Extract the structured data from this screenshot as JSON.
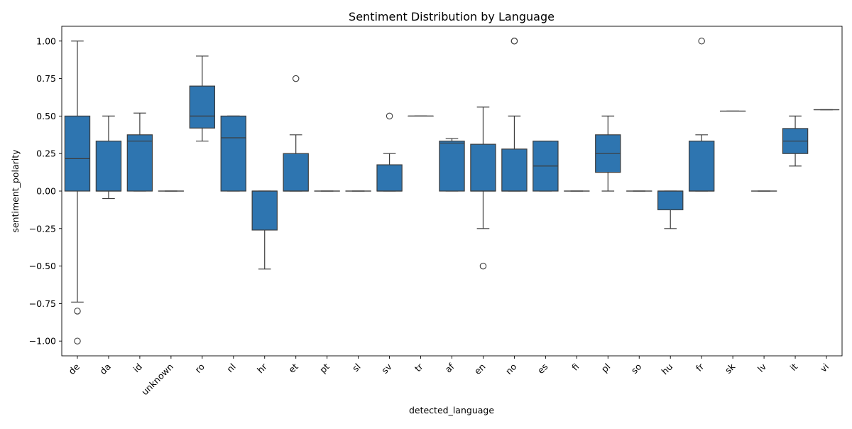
{
  "chart_data": {
    "type": "box",
    "title": "Sentiment Distribution by Language",
    "xlabel": "detected_language",
    "ylabel": "sentiment_polarity",
    "ylim": [
      -1.09,
      1.1
    ],
    "yticks": [
      -1.0,
      -0.75,
      -0.5,
      -0.25,
      0.0,
      0.25,
      0.5,
      0.75,
      1.0
    ],
    "ytick_labels": [
      "−1.00",
      "−0.75",
      "−0.50",
      "−0.25",
      "0.00",
      "0.25",
      "0.50",
      "0.75",
      "1.00"
    ],
    "grid": false,
    "box_color": "#2e75b0",
    "line_color": "#3d3d3d",
    "categories": [
      "de",
      "da",
      "id",
      "unknown",
      "ro",
      "nl",
      "hr",
      "et",
      "pt",
      "sl",
      "sv",
      "tr",
      "af",
      "en",
      "no",
      "es",
      "fi",
      "pl",
      "so",
      "hu",
      "fr",
      "sk",
      "lv",
      "it",
      "vi"
    ],
    "boxes": [
      {
        "q1": 0.0,
        "median": 0.216,
        "q3": 0.5,
        "whislo": -0.74,
        "whishi": 1.0,
        "fliers": [
          -0.8,
          -1.0
        ]
      },
      {
        "q1": 0.0,
        "median": 0.0,
        "q3": 0.333,
        "whislo": -0.05,
        "whishi": 0.5,
        "fliers": []
      },
      {
        "q1": 0.0,
        "median": 0.333,
        "q3": 0.375,
        "whislo": 0.0,
        "whishi": 0.52,
        "fliers": []
      },
      {
        "q1": 0.0,
        "median": 0.0,
        "q3": 0.0,
        "whislo": 0.0,
        "whishi": 0.0,
        "fliers": []
      },
      {
        "q1": 0.42,
        "median": 0.5,
        "q3": 0.7,
        "whislo": 0.333,
        "whishi": 0.9,
        "fliers": []
      },
      {
        "q1": 0.0,
        "median": 0.355,
        "q3": 0.5,
        "whislo": 0.0,
        "whishi": 0.5,
        "fliers": []
      },
      {
        "q1": -0.26,
        "median": 0.0,
        "q3": 0.0,
        "whislo": -0.52,
        "whishi": 0.0,
        "fliers": []
      },
      {
        "q1": 0.0,
        "median": 0.0,
        "q3": 0.25,
        "whislo": 0.0,
        "whishi": 0.375,
        "fliers": [
          0.75
        ]
      },
      {
        "q1": 0.0,
        "median": 0.0,
        "q3": 0.0,
        "whislo": 0.0,
        "whishi": 0.0,
        "fliers": []
      },
      {
        "q1": 0.0,
        "median": 0.0,
        "q3": 0.0,
        "whislo": 0.0,
        "whishi": 0.0,
        "fliers": []
      },
      {
        "q1": 0.0,
        "median": 0.0,
        "q3": 0.175,
        "whislo": 0.0,
        "whishi": 0.25,
        "fliers": [
          0.5
        ]
      },
      {
        "q1": 0.5,
        "median": 0.5,
        "q3": 0.5,
        "whislo": 0.5,
        "whishi": 0.5,
        "fliers": []
      },
      {
        "q1": 0.0,
        "median": 0.32,
        "q3": 0.333,
        "whislo": 0.0,
        "whishi": 0.35,
        "fliers": []
      },
      {
        "q1": 0.0,
        "median": 0.0,
        "q3": 0.312,
        "whislo": -0.25,
        "whishi": 0.56,
        "fliers": [
          -0.5
        ]
      },
      {
        "q1": 0.0,
        "median": 0.0,
        "q3": 0.28,
        "whislo": 0.0,
        "whishi": 0.5,
        "fliers": [
          1.0,
          1.0
        ]
      },
      {
        "q1": 0.0,
        "median": 0.167,
        "q3": 0.333,
        "whislo": 0.0,
        "whishi": 0.333,
        "fliers": []
      },
      {
        "q1": 0.0,
        "median": 0.0,
        "q3": 0.0,
        "whislo": 0.0,
        "whishi": 0.0,
        "fliers": []
      },
      {
        "q1": 0.125,
        "median": 0.25,
        "q3": 0.375,
        "whislo": 0.0,
        "whishi": 0.5,
        "fliers": []
      },
      {
        "q1": 0.0,
        "median": 0.0,
        "q3": 0.0,
        "whislo": 0.0,
        "whishi": 0.0,
        "fliers": []
      },
      {
        "q1": -0.125,
        "median": 0.0,
        "q3": 0.0,
        "whislo": -0.25,
        "whishi": 0.0,
        "fliers": []
      },
      {
        "q1": 0.0,
        "median": 0.0,
        "q3": 0.333,
        "whislo": 0.0,
        "whishi": 0.375,
        "fliers": [
          1.0
        ]
      },
      {
        "q1": 0.533,
        "median": 0.533,
        "q3": 0.533,
        "whislo": 0.533,
        "whishi": 0.533,
        "fliers": []
      },
      {
        "q1": 0.0,
        "median": 0.0,
        "q3": 0.0,
        "whislo": 0.0,
        "whishi": 0.0,
        "fliers": []
      },
      {
        "q1": 0.25,
        "median": 0.333,
        "q3": 0.417,
        "whislo": 0.167,
        "whishi": 0.5,
        "fliers": []
      },
      {
        "q1": 0.542,
        "median": 0.542,
        "q3": 0.542,
        "whislo": 0.542,
        "whishi": 0.542,
        "fliers": []
      }
    ]
  }
}
